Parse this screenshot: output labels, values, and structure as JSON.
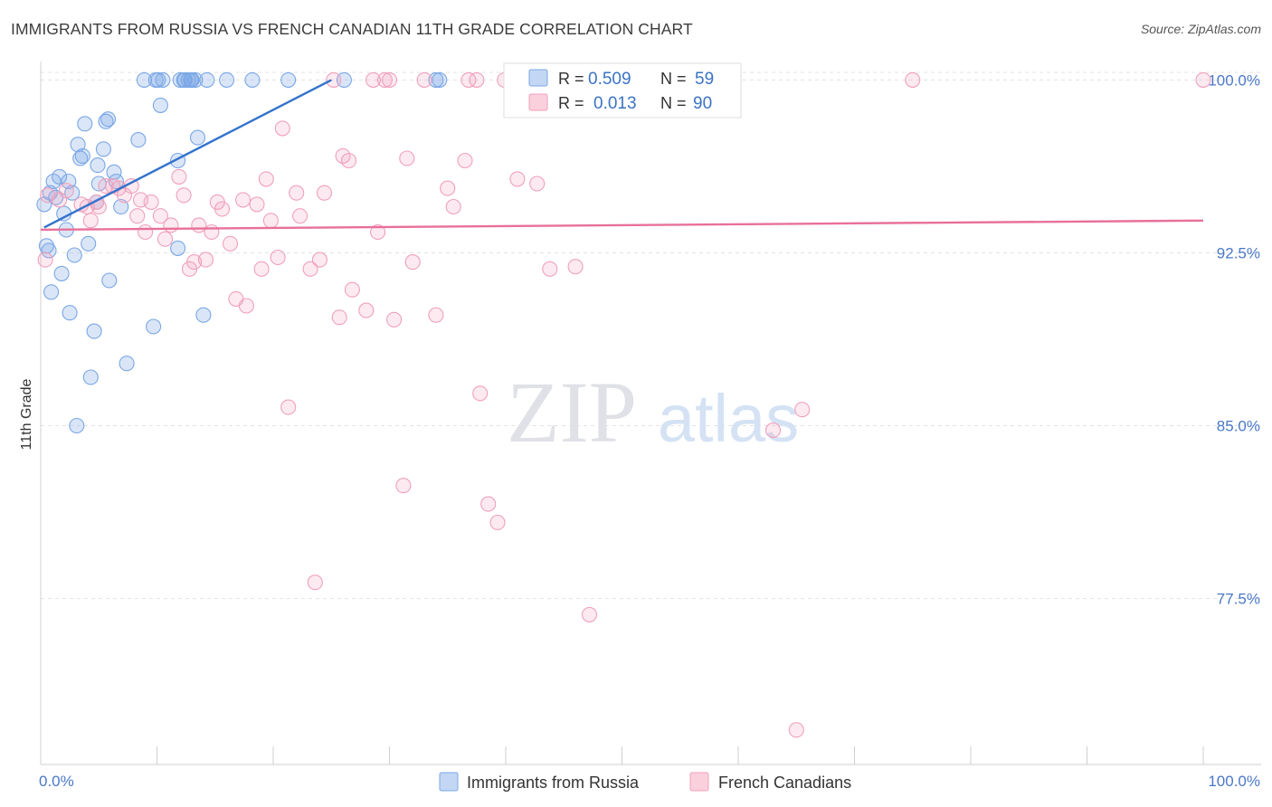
{
  "header": {
    "title": "IMMIGRANTS FROM RUSSIA VS FRENCH CANADIAN 11TH GRADE CORRELATION CHART",
    "source": "Source: ZipAtlas.com"
  },
  "watermark": {
    "zip": "ZIP",
    "atlas": "atlas"
  },
  "stats": [
    {
      "r_label": "R = ",
      "r": "0.509",
      "n_label": "N = ",
      "n": "59",
      "color": "#7aa7e6"
    },
    {
      "r_label": "R = ",
      "r": "0.013",
      "n_label": "N = ",
      "n": "90",
      "color": "#f0a0bb"
    }
  ],
  "chart_data": {
    "type": "scatter",
    "title": "IMMIGRANTS FROM RUSSIA VS FRENCH CANADIAN 11TH GRADE CORRELATION CHART",
    "xlabel": "",
    "ylabel": "11th Grade",
    "xlim": [
      0,
      100
    ],
    "ylim": [
      70.3,
      100.8
    ],
    "x_tick_labels": [
      "0.0%",
      "100.0%"
    ],
    "y_ticks": [
      {
        "value": 100,
        "label": "100.0%"
      },
      {
        "value": 92.5,
        "label": "92.5%"
      },
      {
        "value": 85,
        "label": "85.0%"
      },
      {
        "value": 77.5,
        "label": "77.5%"
      }
    ],
    "grid": true,
    "legend": "bottom-center",
    "series": [
      {
        "name": "Immigrants from Russia",
        "color": "#7aa7e6",
        "trend": {
          "x0": 0.3,
          "y0": 93.6,
          "x1": 25.0,
          "y1": 100.0,
          "color": "#3373cc"
        },
        "points": [
          [
            0.3,
            94.6
          ],
          [
            0.5,
            92.8
          ],
          [
            0.7,
            92.6
          ],
          [
            0.8,
            95.1
          ],
          [
            0.9,
            90.8
          ],
          [
            1.1,
            95.6
          ],
          [
            1.3,
            94.9
          ],
          [
            1.6,
            95.8
          ],
          [
            1.8,
            91.6
          ],
          [
            2.0,
            94.2
          ],
          [
            2.2,
            93.5
          ],
          [
            2.4,
            95.6
          ],
          [
            2.5,
            89.9
          ],
          [
            2.7,
            95.1
          ],
          [
            2.9,
            92.4
          ],
          [
            3.1,
            85.0
          ],
          [
            3.2,
            97.2
          ],
          [
            3.4,
            96.6
          ],
          [
            3.6,
            96.7
          ],
          [
            3.8,
            98.1
          ],
          [
            4.1,
            92.9
          ],
          [
            4.3,
            87.1
          ],
          [
            4.6,
            89.1
          ],
          [
            4.8,
            94.7
          ],
          [
            4.9,
            96.3
          ],
          [
            5.0,
            95.5
          ],
          [
            5.4,
            97.0
          ],
          [
            5.6,
            98.2
          ],
          [
            5.8,
            98.3
          ],
          [
            5.9,
            91.3
          ],
          [
            6.3,
            96.0
          ],
          [
            6.5,
            95.6
          ],
          [
            6.9,
            94.5
          ],
          [
            7.4,
            87.7
          ],
          [
            8.4,
            97.4
          ],
          [
            8.9,
            100.0
          ],
          [
            9.7,
            89.3
          ],
          [
            9.9,
            100.0
          ],
          [
            10.1,
            100.0
          ],
          [
            10.3,
            98.9
          ],
          [
            10.5,
            100.0
          ],
          [
            11.8,
            96.5
          ],
          [
            11.8,
            92.7
          ],
          [
            12.0,
            100.0
          ],
          [
            12.3,
            100.0
          ],
          [
            12.4,
            100.0
          ],
          [
            12.7,
            100.0
          ],
          [
            12.9,
            100.0
          ],
          [
            13.0,
            100.0
          ],
          [
            13.3,
            100.0
          ],
          [
            13.5,
            97.5
          ],
          [
            14.0,
            89.8
          ],
          [
            14.3,
            100.0
          ],
          [
            16.0,
            100.0
          ],
          [
            18.2,
            100.0
          ],
          [
            21.3,
            100.0
          ],
          [
            26.1,
            100.0
          ],
          [
            34.0,
            100.0
          ],
          [
            34.3,
            100.0
          ]
        ]
      },
      {
        "name": "French Canadians",
        "color": "#f0a0bb",
        "trend": {
          "x0": 0.0,
          "y0": 93.5,
          "x1": 100.0,
          "y1": 93.9,
          "color": "#e8709a"
        },
        "points": [
          [
            0.4,
            92.2
          ],
          [
            0.6,
            95.0
          ],
          [
            1.6,
            94.8
          ],
          [
            2.2,
            95.2
          ],
          [
            3.5,
            94.6
          ],
          [
            4.0,
            94.5
          ],
          [
            4.3,
            93.9
          ],
          [
            4.8,
            94.7
          ],
          [
            5.0,
            94.5
          ],
          [
            5.6,
            95.4
          ],
          [
            6.2,
            95.4
          ],
          [
            6.7,
            95.3
          ],
          [
            7.2,
            95.0
          ],
          [
            7.8,
            95.4
          ],
          [
            8.3,
            94.1
          ],
          [
            8.6,
            94.8
          ],
          [
            9.0,
            93.4
          ],
          [
            9.5,
            94.7
          ],
          [
            10.3,
            94.1
          ],
          [
            10.7,
            93.1
          ],
          [
            11.2,
            93.7
          ],
          [
            11.9,
            95.8
          ],
          [
            12.3,
            95.0
          ],
          [
            12.8,
            91.8
          ],
          [
            13.2,
            92.1
          ],
          [
            13.6,
            93.7
          ],
          [
            14.2,
            92.2
          ],
          [
            14.7,
            93.4
          ],
          [
            15.2,
            94.7
          ],
          [
            15.6,
            94.4
          ],
          [
            16.3,
            92.9
          ],
          [
            16.8,
            90.5
          ],
          [
            17.4,
            94.8
          ],
          [
            17.7,
            90.2
          ],
          [
            18.6,
            94.6
          ],
          [
            19.0,
            91.8
          ],
          [
            19.4,
            95.7
          ],
          [
            19.8,
            93.9
          ],
          [
            20.4,
            92.3
          ],
          [
            20.8,
            97.9
          ],
          [
            21.3,
            85.8
          ],
          [
            22.0,
            95.1
          ],
          [
            22.3,
            94.1
          ],
          [
            23.2,
            91.8
          ],
          [
            23.6,
            78.2
          ],
          [
            24.0,
            92.2
          ],
          [
            24.4,
            95.1
          ],
          [
            25.2,
            100.0
          ],
          [
            25.7,
            89.7
          ],
          [
            26.0,
            96.7
          ],
          [
            26.5,
            96.5
          ],
          [
            26.8,
            90.9
          ],
          [
            28.0,
            90.0
          ],
          [
            28.6,
            100.0
          ],
          [
            29.0,
            93.4
          ],
          [
            29.6,
            100.0
          ],
          [
            30.0,
            100.0
          ],
          [
            30.4,
            89.6
          ],
          [
            31.2,
            82.4
          ],
          [
            31.5,
            96.6
          ],
          [
            32.0,
            92.1
          ],
          [
            33.0,
            100.0
          ],
          [
            34.0,
            89.8
          ],
          [
            35.0,
            95.3
          ],
          [
            35.5,
            94.5
          ],
          [
            36.5,
            96.5
          ],
          [
            36.8,
            100.0
          ],
          [
            37.5,
            100.0
          ],
          [
            37.8,
            86.4
          ],
          [
            38.5,
            81.6
          ],
          [
            39.3,
            80.8
          ],
          [
            39.9,
            100.0
          ],
          [
            41.0,
            95.7
          ],
          [
            42.0,
            100.0
          ],
          [
            42.7,
            95.5
          ],
          [
            43.0,
            100.0
          ],
          [
            43.8,
            91.8
          ],
          [
            46.0,
            91.9
          ],
          [
            47.0,
            100.0
          ],
          [
            47.2,
            76.8
          ],
          [
            48.0,
            100.0
          ],
          [
            52.5,
            100.0
          ],
          [
            53.5,
            100.0
          ],
          [
            53.8,
            100.0
          ],
          [
            55.0,
            100.0
          ],
          [
            63.0,
            84.8
          ],
          [
            65.0,
            71.8
          ],
          [
            65.5,
            85.7
          ],
          [
            75.0,
            100.0
          ],
          [
            100.0,
            100.0
          ]
        ]
      }
    ]
  }
}
